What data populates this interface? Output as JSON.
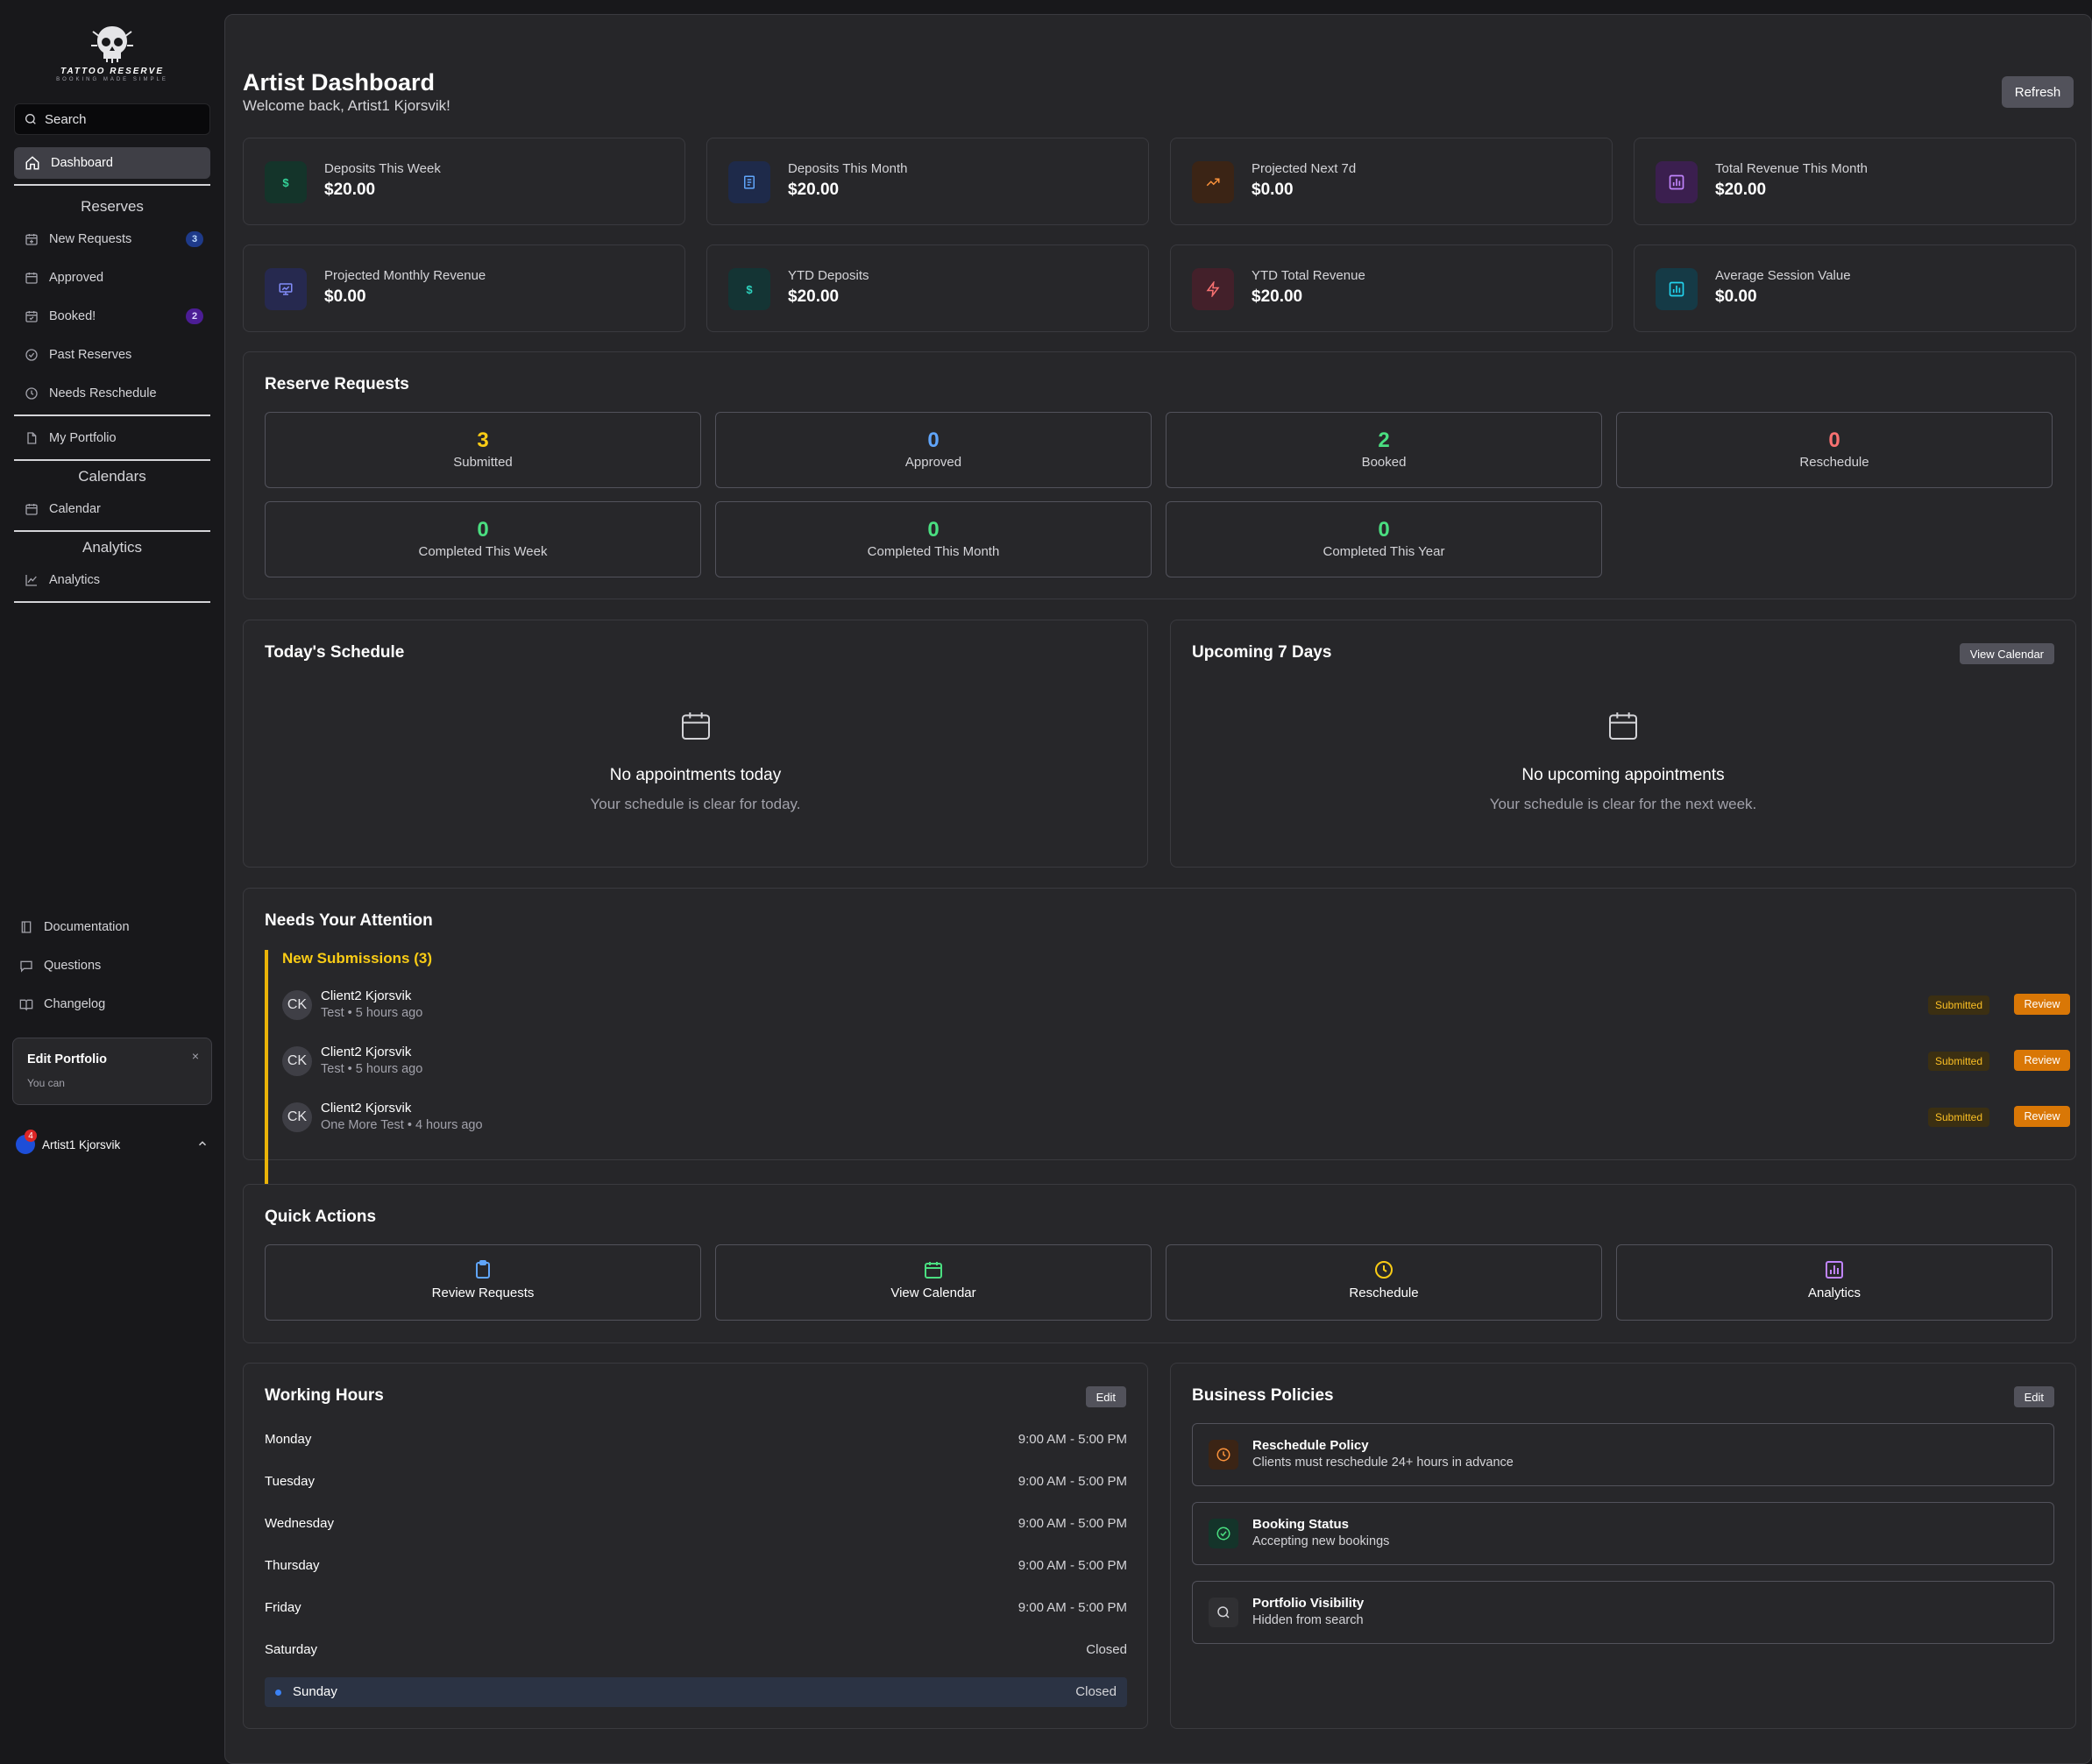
{
  "brand": {
    "name": "TATTOO RESERVE",
    "tagline": "BOOKING MADE SIMPLE"
  },
  "sidebar": {
    "search_placeholder": "Search",
    "dashboard": "Dashboard",
    "reserves_label": "Reserves",
    "reserves": [
      {
        "label": "New Requests",
        "badge": "3"
      },
      {
        "label": "Approved"
      },
      {
        "label": "Booked!",
        "badge": "2"
      },
      {
        "label": "Past Reserves"
      },
      {
        "label": "Needs Reschedule"
      }
    ],
    "portfolio": "My Portfolio",
    "calendars_label": "Calendars",
    "calendar": "Calendar",
    "analytics_label": "Analytics",
    "analytics": "Analytics",
    "footer": {
      "docs": "Documentation",
      "questions": "Questions",
      "changelog": "Changelog"
    },
    "toast": {
      "title": "Edit Portfolio",
      "body": "You can",
      "close": "×"
    },
    "user": {
      "name": "Artist1 Kjorsvik",
      "notifications": "4"
    }
  },
  "header": {
    "title": "Artist Dashboard",
    "subtitle": "Welcome back, Artist1 Kjorsvik!",
    "refresh": "Refresh"
  },
  "stats": [
    {
      "label": "Deposits This Week",
      "value": "$20.00",
      "icon": "dollar-icon"
    },
    {
      "label": "Deposits This Month",
      "value": "$20.00",
      "icon": "receipt-icon"
    },
    {
      "label": "Projected Next 7d",
      "value": "$0.00",
      "icon": "trending-up-icon"
    },
    {
      "label": "Total Revenue This Month",
      "value": "$20.00",
      "icon": "chart-bar-icon"
    },
    {
      "label": "Projected Monthly Revenue",
      "value": "$0.00",
      "icon": "presentation-chart-icon"
    },
    {
      "label": "YTD Deposits",
      "value": "$20.00",
      "icon": "dollar-icon"
    },
    {
      "label": "YTD Total Revenue",
      "value": "$20.00",
      "icon": "zap-icon"
    },
    {
      "label": "Average Session Value",
      "value": "$0.00",
      "icon": "chart-bar-icon"
    }
  ],
  "reserve_requests": {
    "title": "Reserve Requests",
    "tiles": [
      {
        "count": "3",
        "label": "Submitted",
        "color": "#facc15"
      },
      {
        "count": "0",
        "label": "Approved",
        "color": "#60a5fa"
      },
      {
        "count": "2",
        "label": "Booked",
        "color": "#4ade80"
      },
      {
        "count": "0",
        "label": "Reschedule",
        "color": "#f87171"
      },
      {
        "count": "0",
        "label": "Completed This Week",
        "color": "#4ade80"
      },
      {
        "count": "0",
        "label": "Completed This Month",
        "color": "#4ade80"
      },
      {
        "count": "0",
        "label": "Completed This Year",
        "color": "#4ade80"
      }
    ]
  },
  "today": {
    "title": "Today's Schedule",
    "empty_title": "No appointments today",
    "empty_sub": "Your schedule is clear for today."
  },
  "upcoming": {
    "title": "Upcoming 7 Days",
    "button": "View Calendar",
    "empty_title": "No upcoming appointments",
    "empty_sub": "Your schedule is clear for the next week."
  },
  "attention": {
    "title": "Needs Your Attention",
    "group": "New Submissions (3)",
    "items": [
      {
        "initials": "CK",
        "name": "Client2 Kjorsvik",
        "meta": "Test • 5 hours ago",
        "status": "Submitted",
        "action": "Review"
      },
      {
        "initials": "CK",
        "name": "Client2 Kjorsvik",
        "meta": "Test • 5 hours ago",
        "status": "Submitted",
        "action": "Review"
      },
      {
        "initials": "CK",
        "name": "Client2 Kjorsvik",
        "meta": "One More Test • 4 hours ago",
        "status": "Submitted",
        "action": "Review"
      }
    ]
  },
  "quick_actions": {
    "title": "Quick Actions",
    "items": [
      {
        "label": "Review Requests"
      },
      {
        "label": "View Calendar"
      },
      {
        "label": "Reschedule"
      },
      {
        "label": "Analytics"
      }
    ]
  },
  "working_hours": {
    "title": "Working Hours",
    "edit": "Edit",
    "days": [
      {
        "day": "Monday",
        "hours": "9:00 AM - 5:00 PM"
      },
      {
        "day": "Tuesday",
        "hours": "9:00 AM - 5:00 PM"
      },
      {
        "day": "Wednesday",
        "hours": "9:00 AM - 5:00 PM"
      },
      {
        "day": "Thursday",
        "hours": "9:00 AM - 5:00 PM"
      },
      {
        "day": "Friday",
        "hours": "9:00 AM - 5:00 PM"
      },
      {
        "day": "Saturday",
        "hours": "Closed"
      },
      {
        "day": "Sunday",
        "hours": "Closed"
      }
    ]
  },
  "policies": {
    "title": "Business Policies",
    "edit": "Edit",
    "items": [
      {
        "title": "Reschedule Policy",
        "desc": "Clients must reschedule 24+ hours in advance"
      },
      {
        "title": "Booking Status",
        "desc": "Accepting new bookings"
      },
      {
        "title": "Portfolio Visibility",
        "desc": "Hidden from search"
      }
    ]
  },
  "colors": {
    "accent_orange": "#d97706",
    "yellow": "#facc15",
    "blue": "#60a5fa",
    "green": "#4ade80",
    "red": "#f87171"
  }
}
